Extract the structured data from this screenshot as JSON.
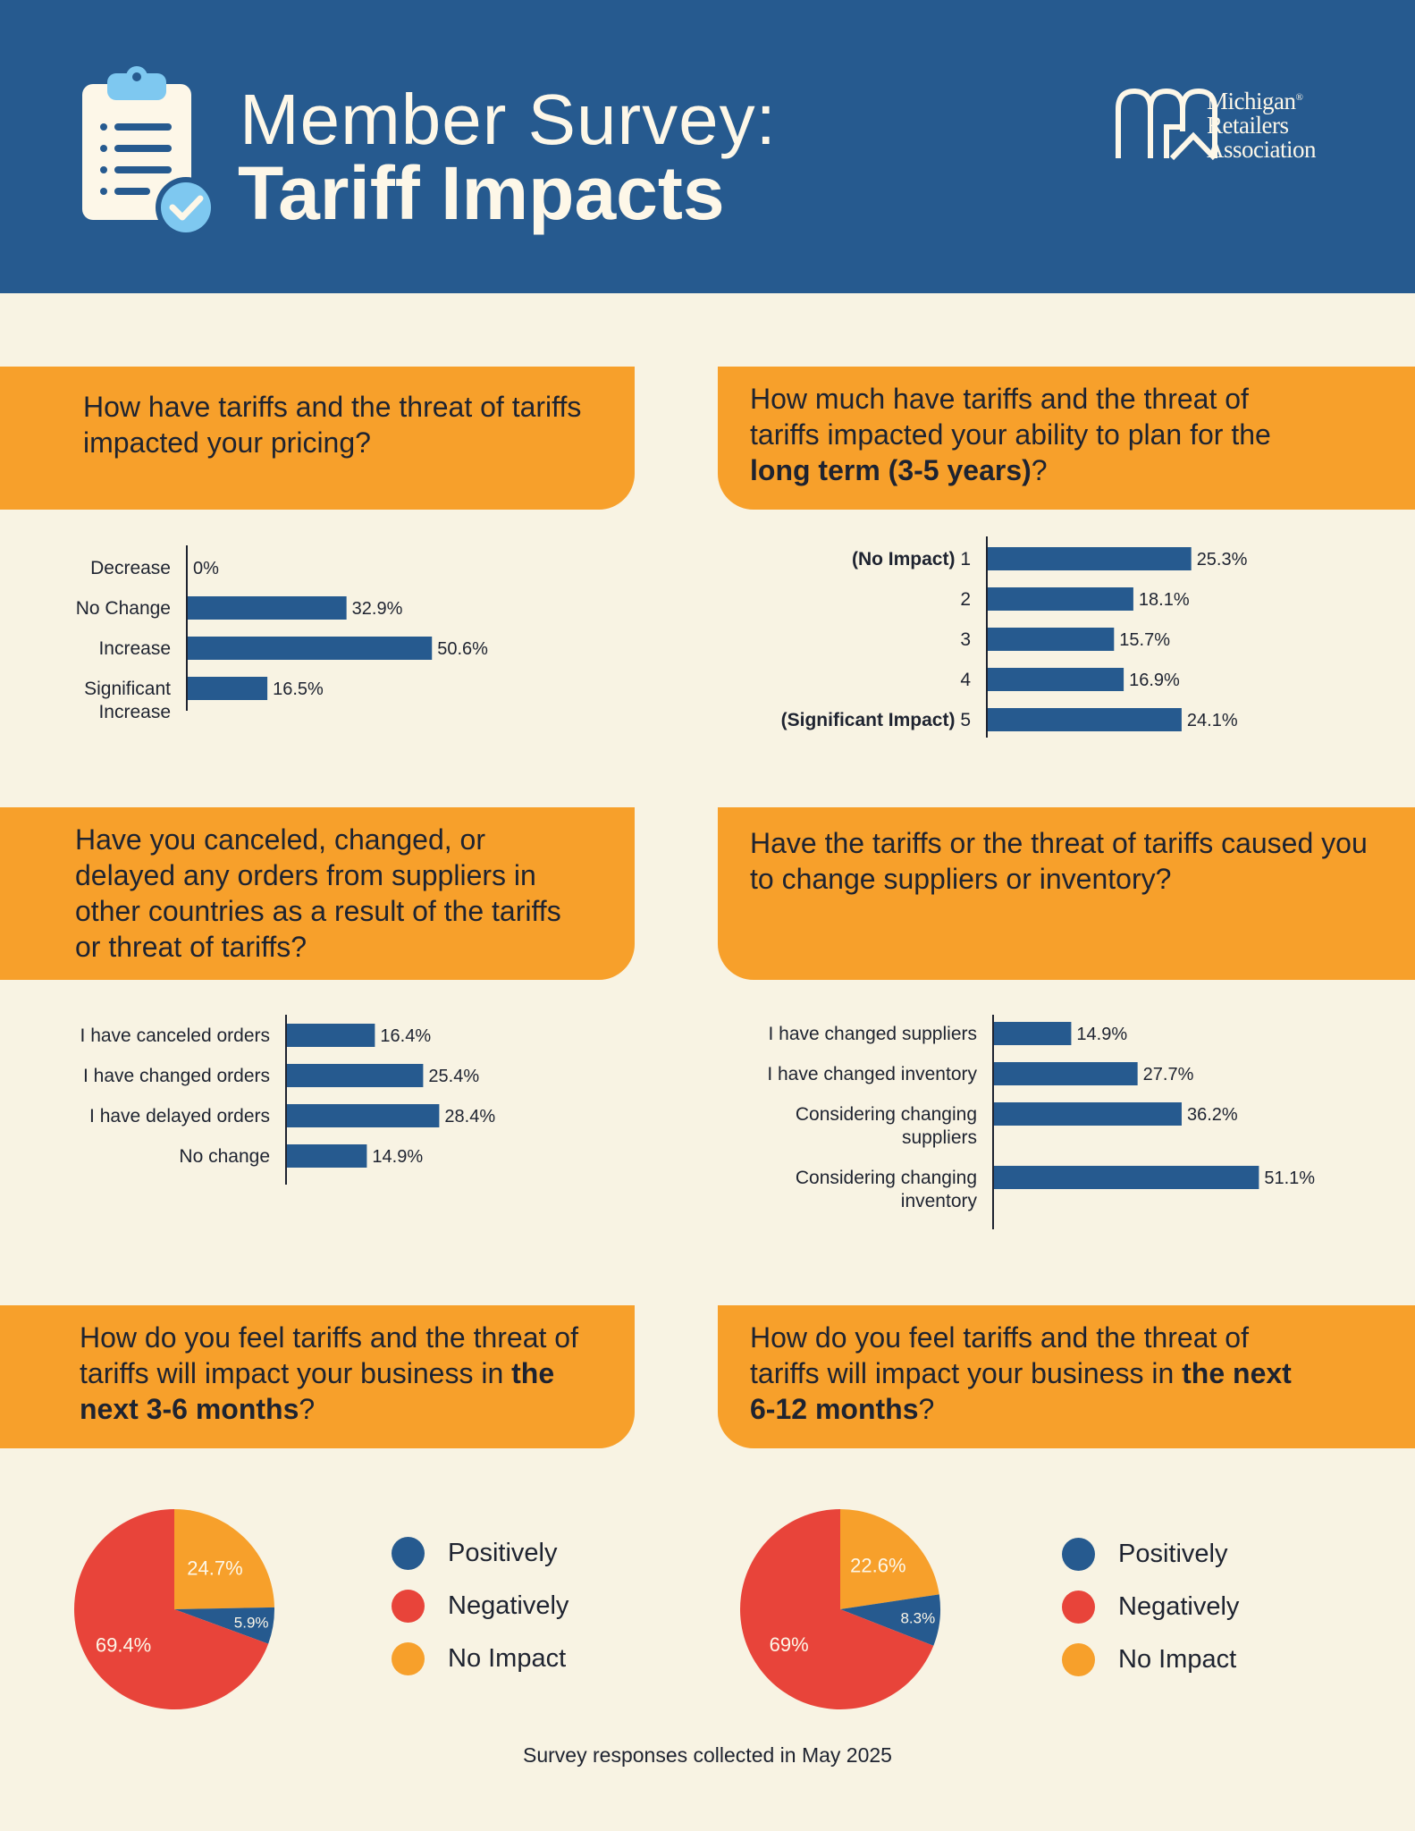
{
  "header": {
    "title_line1": "Member Survey:",
    "title_line2": "Tariff Impacts",
    "logo_line1": "Michigan",
    "logo_line2": "Retailers",
    "logo_line3": "Association",
    "logo_reg": "®"
  },
  "colors": {
    "header_bg": "#265a8f",
    "page_bg": "#f8f3e3",
    "question_bg": "#f7a02b",
    "bar": "#265a8f",
    "positively": "#265a8f",
    "negatively": "#e8443a",
    "no_impact": "#f7a02b"
  },
  "questions": {
    "q1": {
      "text": "How have tariffs and the threat of tariffs impacted your pricing?"
    },
    "q2": {
      "text_pre": "How much have tariffs and the threat of tariffs impacted your ability to plan for the ",
      "text_bold": "long term (3-5 years)",
      "text_post": "?"
    },
    "q3": {
      "text": "Have you canceled, changed, or delayed any orders from suppliers in other countries as a result of the tariffs or threat of tariffs?"
    },
    "q4": {
      "text": "Have the tariffs or the threat of tariffs caused you to change suppliers or inventory?"
    },
    "q5": {
      "text_pre": "How do you feel tariffs and the threat of tariffs will impact your business in ",
      "text_bold": "the next 3-6 months",
      "text_post": "?"
    },
    "q6": {
      "text_pre": "How do you feel tariffs and the threat of tariffs will impact your business in ",
      "text_bold": "the next 6-12 months",
      "text_post": "?"
    }
  },
  "legend": {
    "positively": "Positively",
    "negatively": "Negatively",
    "no_impact": "No Impact"
  },
  "footer": {
    "text": "Survey responses collected in May 2025"
  },
  "chart_data": [
    {
      "id": "pricing",
      "type": "bar",
      "orientation": "horizontal",
      "title": "How have tariffs and the threat of tariffs impacted your pricing?",
      "categories": [
        "Decrease",
        "No Change",
        "Increase",
        "Significant Increase"
      ],
      "values": [
        0,
        32.9,
        50.6,
        16.5
      ],
      "value_labels": [
        "0%",
        "32.9%",
        "50.6%",
        "16.5%"
      ],
      "xlim": [
        0,
        100
      ]
    },
    {
      "id": "long_term",
      "type": "bar",
      "orientation": "horizontal",
      "title": "How much have tariffs and the threat of tariffs impacted your ability to plan for the long term (3-5 years)?",
      "categories": [
        "1",
        "2",
        "3",
        "4",
        "5"
      ],
      "category_prefixes": [
        "(No Impact)",
        "",
        "",
        "",
        "(Significant Impact)"
      ],
      "values": [
        25.3,
        18.1,
        15.7,
        16.9,
        24.1
      ],
      "value_labels": [
        "25.3%",
        "18.1%",
        "15.7%",
        "16.9%",
        "24.1%"
      ],
      "xlim": [
        0,
        100
      ]
    },
    {
      "id": "orders",
      "type": "bar",
      "orientation": "horizontal",
      "title": "Have you canceled, changed, or delayed any orders from suppliers in other countries as a result of the tariffs or threat of tariffs?",
      "categories": [
        "I have canceled orders",
        "I have changed orders",
        "I have delayed orders",
        "No change"
      ],
      "values": [
        16.4,
        25.4,
        28.4,
        14.9
      ],
      "value_labels": [
        "16.4%",
        "25.4%",
        "28.4%",
        "14.9%"
      ],
      "xlim": [
        0,
        100
      ]
    },
    {
      "id": "suppliers",
      "type": "bar",
      "orientation": "horizontal",
      "title": "Have the tariffs or the threat of tariffs caused you to change suppliers or inventory?",
      "categories": [
        "I have changed suppliers",
        "I have changed inventory",
        "Considering changing suppliers",
        "Considering changing inventory"
      ],
      "values": [
        14.9,
        27.7,
        36.2,
        51.1
      ],
      "value_labels": [
        "14.9%",
        "27.7%",
        "36.2%",
        "51.1%"
      ],
      "xlim": [
        0,
        100
      ]
    },
    {
      "id": "short_term",
      "type": "pie",
      "title": "How do you feel tariffs and the threat of tariffs will impact your business in the next 3-6 months?",
      "categories": [
        "Positively",
        "Negatively",
        "No Impact"
      ],
      "values": [
        5.9,
        69.4,
        24.7
      ],
      "value_labels": [
        "5.9%",
        "69.4%",
        "24.7%"
      ]
    },
    {
      "id": "mid_term",
      "type": "pie",
      "title": "How do you feel tariffs and the threat of tariffs will impact your business in the next 6-12 months?",
      "categories": [
        "Positively",
        "Negatively",
        "No Impact"
      ],
      "values": [
        8.3,
        69,
        22.6
      ],
      "value_labels": [
        "8.3%",
        "69%",
        "22.6%"
      ]
    }
  ]
}
